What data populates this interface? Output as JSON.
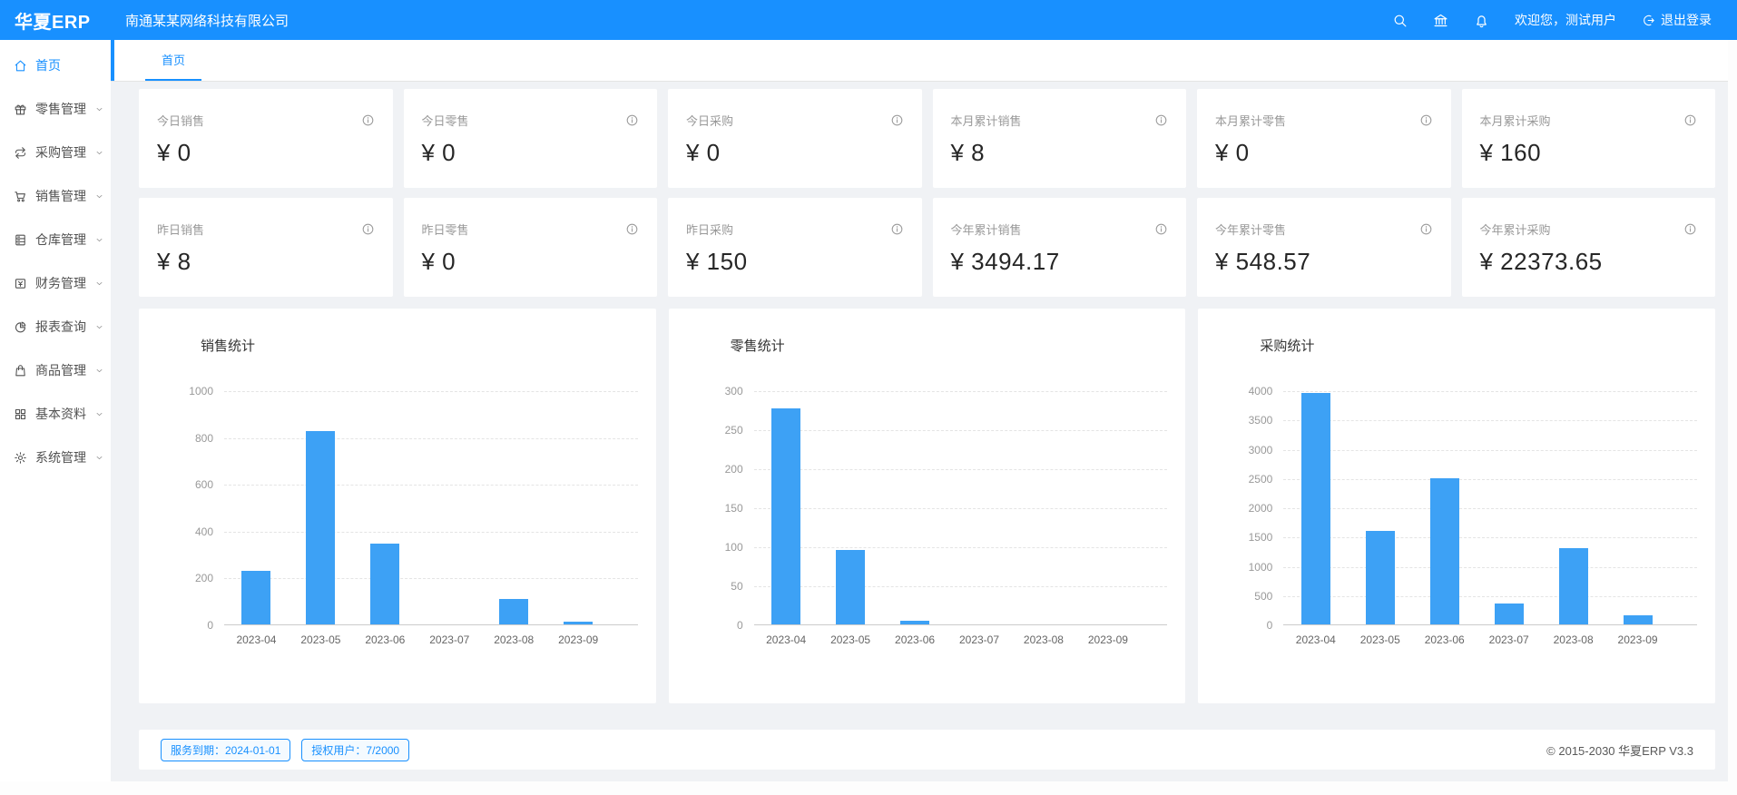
{
  "colors": {
    "primary": "#1890ff",
    "bar": "#3da1f5",
    "background": "#f0f2f5"
  },
  "navbar": {
    "logo": "华夏ERP",
    "company": "南通某某网络科技有限公司",
    "icons": [
      "search",
      "bank",
      "bell"
    ],
    "welcome": "欢迎您，测试用户",
    "logout_label": "退出登录"
  },
  "sidebar": {
    "items": [
      {
        "id": "home",
        "label": "首页",
        "icon": "home",
        "active": true,
        "expandable": false
      },
      {
        "id": "retail",
        "label": "零售管理",
        "icon": "gift",
        "active": false,
        "expandable": true
      },
      {
        "id": "purchase",
        "label": "采购管理",
        "icon": "swap",
        "active": false,
        "expandable": true
      },
      {
        "id": "sales",
        "label": "销售管理",
        "icon": "cart",
        "active": false,
        "expandable": true
      },
      {
        "id": "warehouse",
        "label": "仓库管理",
        "icon": "warehouse",
        "active": false,
        "expandable": true
      },
      {
        "id": "finance",
        "label": "财务管理",
        "icon": "money",
        "active": false,
        "expandable": true
      },
      {
        "id": "report",
        "label": "报表查询",
        "icon": "pie",
        "active": false,
        "expandable": true
      },
      {
        "id": "goods",
        "label": "商品管理",
        "icon": "bag",
        "active": false,
        "expandable": true
      },
      {
        "id": "basic",
        "label": "基本资料",
        "icon": "grid",
        "active": false,
        "expandable": true
      },
      {
        "id": "system",
        "label": "系统管理",
        "icon": "gear",
        "active": false,
        "expandable": true
      }
    ]
  },
  "tabs": {
    "active": "首页"
  },
  "stats": {
    "cards": [
      {
        "label": "今日销售",
        "value": "¥ 0"
      },
      {
        "label": "今日零售",
        "value": "¥ 0"
      },
      {
        "label": "今日采购",
        "value": "¥ 0"
      },
      {
        "label": "本月累计销售",
        "value": "¥ 8"
      },
      {
        "label": "本月累计零售",
        "value": "¥ 0"
      },
      {
        "label": "本月累计采购",
        "value": "¥ 160"
      },
      {
        "label": "昨日销售",
        "value": "¥ 8"
      },
      {
        "label": "昨日零售",
        "value": "¥ 0"
      },
      {
        "label": "昨日采购",
        "value": "¥ 150"
      },
      {
        "label": "今年累计销售",
        "value": "¥ 3494.17"
      },
      {
        "label": "今年累计零售",
        "value": "¥ 548.57"
      },
      {
        "label": "今年累计采购",
        "value": "¥ 22373.65"
      }
    ]
  },
  "chart_data": [
    {
      "type": "bar",
      "title": "销售统计",
      "categories": [
        "2023-04",
        "2023-05",
        "2023-06",
        "2023-07",
        "2023-08",
        "2023-09"
      ],
      "values": [
        230,
        825,
        345,
        0,
        110,
        10
      ],
      "ylim": [
        0,
        1000
      ],
      "yticks": [
        0,
        200,
        400,
        600,
        800,
        1000
      ],
      "grid": "dashed",
      "legend": "none"
    },
    {
      "type": "bar",
      "title": "零售统计",
      "categories": [
        "2023-04",
        "2023-05",
        "2023-06",
        "2023-07",
        "2023-08",
        "2023-09"
      ],
      "values": [
        277,
        95,
        5,
        0,
        0,
        0
      ],
      "ylim": [
        0,
        300
      ],
      "yticks": [
        0,
        50,
        100,
        150,
        200,
        250,
        300
      ],
      "grid": "dashed",
      "legend": "none"
    },
    {
      "type": "bar",
      "title": "采购统计",
      "categories": [
        "2023-04",
        "2023-05",
        "2023-06",
        "2023-07",
        "2023-08",
        "2023-09"
      ],
      "values": [
        3950,
        1600,
        2500,
        350,
        1300,
        150
      ],
      "ylim": [
        0,
        4000
      ],
      "yticks": [
        0,
        500,
        1000,
        1500,
        2000,
        2500,
        3000,
        3500,
        4000
      ],
      "grid": "dashed",
      "legend": "none"
    }
  ],
  "footer": {
    "service_badge": "服务到期：2024-01-01",
    "license_badge": "授权用户：7/2000",
    "copyright": "© 2015-2030 华夏ERP V3.3"
  }
}
